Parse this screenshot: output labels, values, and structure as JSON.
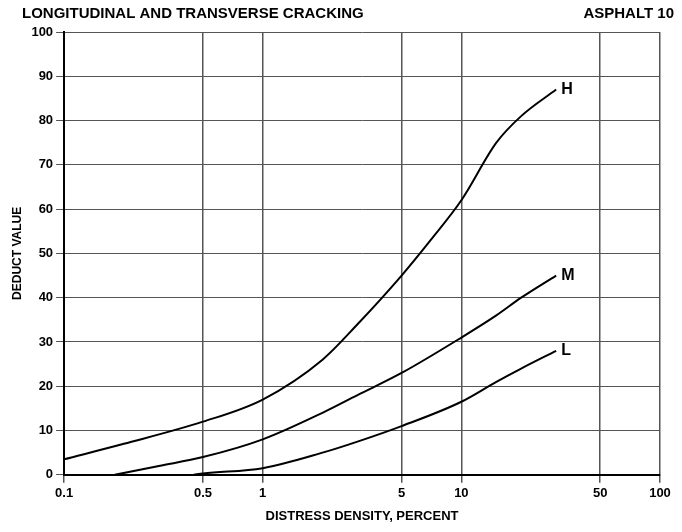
{
  "chart_data": {
    "type": "line",
    "title": "LONGITUDINAL AND TRANSVERSE CRACKING",
    "subtitle": "ASPHALT 10",
    "x_label": "DISTRESS DENSITY, PERCENT",
    "y_label": "DEDUCT VALUE",
    "log": "x",
    "grid": true,
    "xlim": [
      0.1,
      100
    ],
    "ylim": [
      0,
      100
    ],
    "xticks": [
      0.1,
      0.5,
      1,
      5,
      10,
      50,
      100
    ],
    "yticks": [
      0,
      10,
      20,
      30,
      40,
      50,
      60,
      70,
      80,
      90,
      100
    ],
    "series": [
      {
        "name": "H",
        "color": "#000000",
        "x": [
          0.1,
          0.2,
          0.5,
          1,
          2,
          3,
          5,
          7,
          10,
          15,
          20,
          30
        ],
        "values": [
          3.5,
          7,
          12,
          17,
          26,
          34,
          45,
          53,
          62,
          75,
          81,
          87
        ]
      },
      {
        "name": "M",
        "color": "#000000",
        "x": [
          0.18,
          0.3,
          0.5,
          1,
          2,
          3,
          5,
          10,
          15,
          20,
          30
        ],
        "values": [
          0,
          2,
          4,
          8,
          14,
          18,
          23,
          31,
          36,
          40,
          45
        ]
      },
      {
        "name": "L",
        "color": "#000000",
        "x": [
          0.45,
          0.5,
          1,
          2,
          3,
          5,
          10,
          15,
          20,
          30
        ],
        "values": [
          0,
          0.3,
          1.5,
          5,
          7.5,
          11,
          16.5,
          21,
          24,
          28
        ]
      }
    ]
  }
}
